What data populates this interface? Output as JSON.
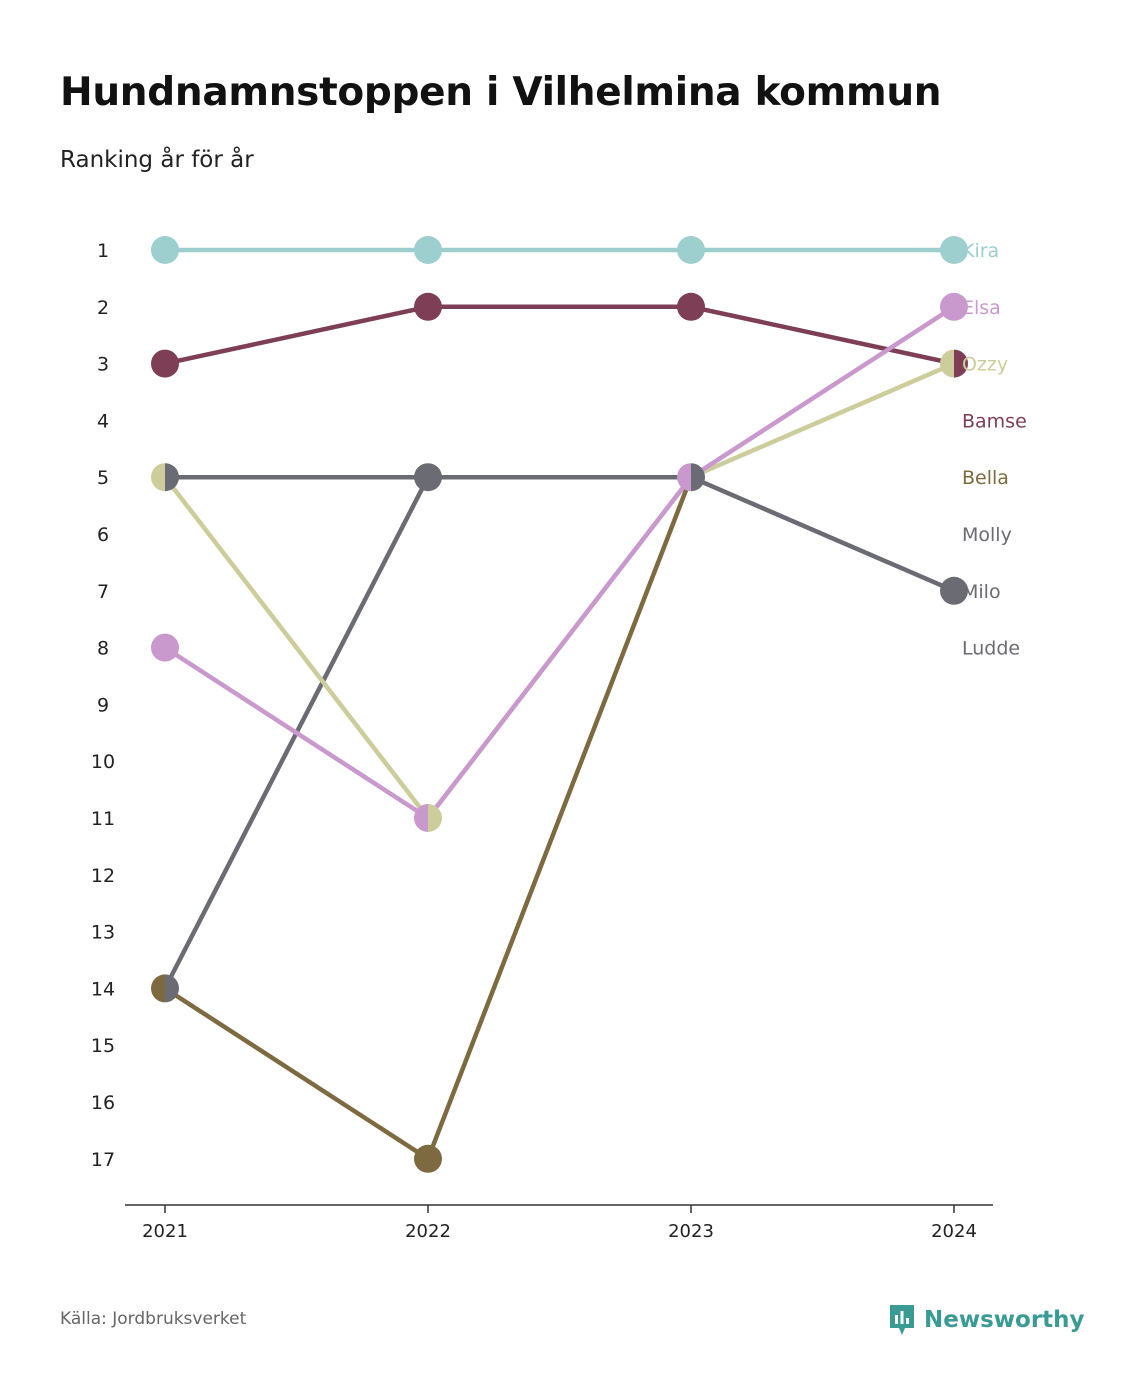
{
  "title": "Hundnamnstoppen i Vilhelmina kommun",
  "subtitle": "Ranking år för år",
  "source": "Källa: Jordbruksverket",
  "brand": {
    "name": "Newsworthy",
    "icon": "newsworthy-logo-icon",
    "color": "#3a9b95"
  },
  "chart_data": {
    "type": "line",
    "x": [
      "2021",
      "2022",
      "2023",
      "2024"
    ],
    "y_ticks": [
      "1",
      "2",
      "3",
      "4",
      "5",
      "6",
      "7",
      "8",
      "9",
      "10",
      "11",
      "12",
      "13",
      "14",
      "15",
      "16",
      "17"
    ],
    "ylim": [
      1,
      17
    ],
    "y_reversed": true,
    "grid": false,
    "legend": "right",
    "series": [
      {
        "name": "Kira",
        "color": "#9ccfcd",
        "values": [
          1,
          1,
          1,
          1
        ]
      },
      {
        "name": "Elsa",
        "color": "#c998cd",
        "values": [
          8,
          11,
          5,
          2
        ]
      },
      {
        "name": "Ozzy",
        "color": "#cccd9a",
        "values": [
          5,
          11,
          5,
          3
        ]
      },
      {
        "name": "Bamse",
        "color": "#7d3e56",
        "values": [
          3,
          2,
          2,
          3
        ]
      },
      {
        "name": "Bella",
        "color": "#7d6a40",
        "values": [
          14,
          17,
          5,
          null
        ]
      },
      {
        "name": "Molly",
        "color": "#6b6b73",
        "values": [
          5,
          5,
          5,
          null
        ]
      },
      {
        "name": "Milo",
        "color": "#6b6b73",
        "values": [
          14,
          5,
          5,
          7
        ]
      },
      {
        "name": "Ludde",
        "color": "#6b6b73",
        "values": [
          null,
          null,
          null,
          null
        ]
      }
    ]
  }
}
